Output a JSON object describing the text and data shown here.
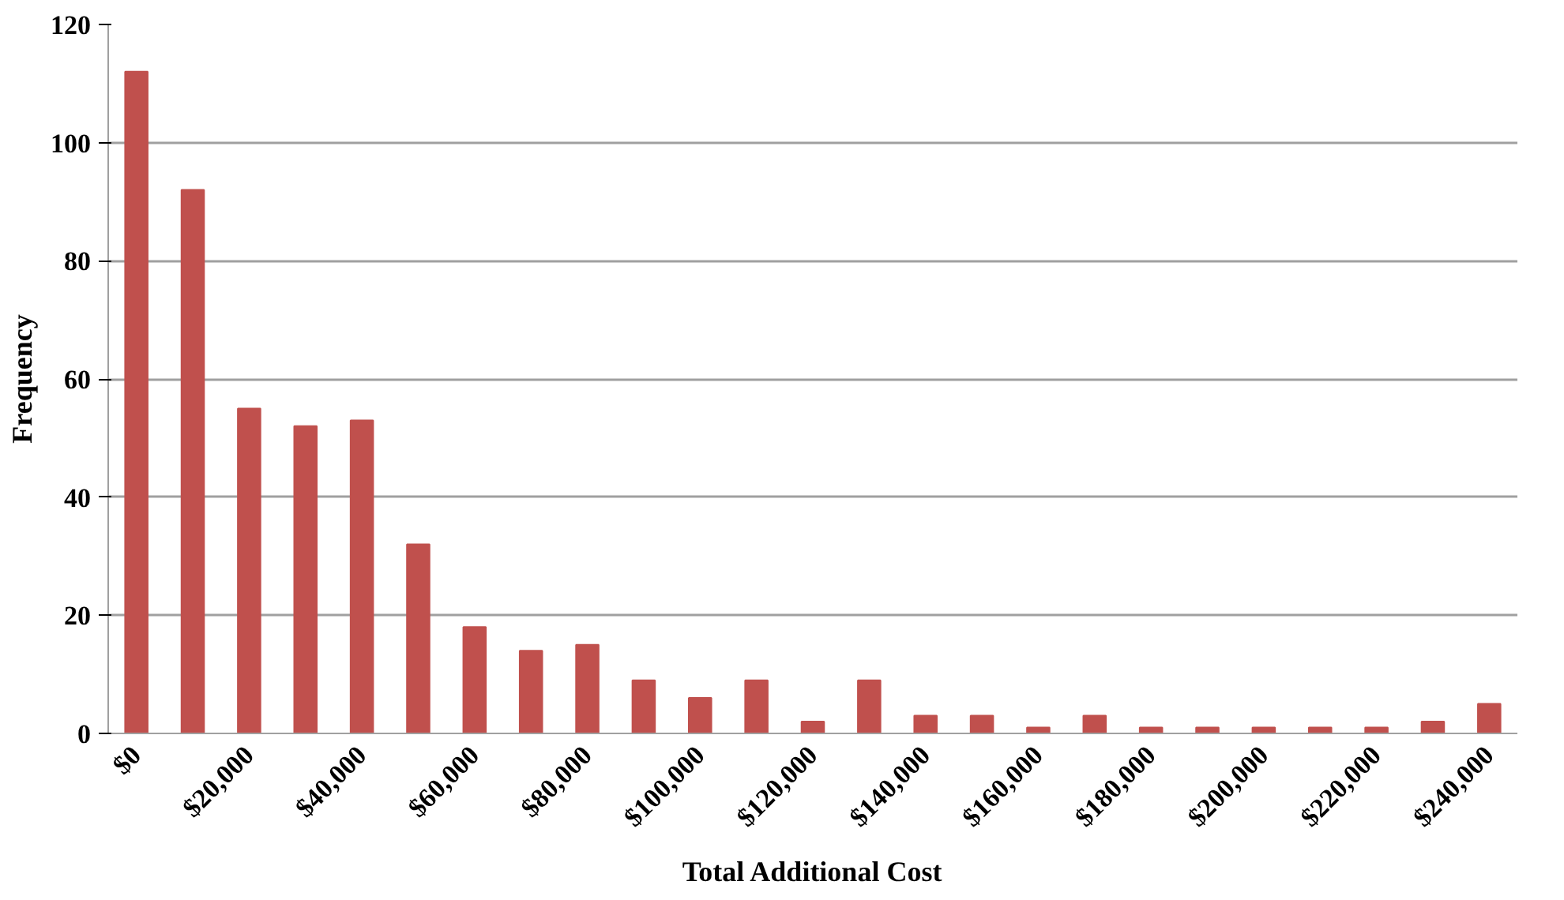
{
  "chart_data": {
    "type": "bar",
    "xlabel": "Total Additional Cost",
    "ylabel": "Frequency",
    "categories": [
      "$0",
      null,
      "$20,000",
      null,
      "$40,000",
      null,
      "$60,000",
      null,
      "$80,000",
      null,
      "$100,000",
      null,
      "$120,000",
      null,
      "$140,000",
      null,
      "$160,000",
      null,
      "$180,000",
      null,
      "$200,000",
      null,
      "$220,000",
      null,
      "$240,000"
    ],
    "values": [
      112,
      92,
      55,
      52,
      53,
      32,
      18,
      14,
      15,
      9,
      6,
      9,
      2,
      9,
      3,
      3,
      1,
      3,
      1,
      1,
      1,
      1,
      1,
      2,
      5
    ],
    "color": "#c0504d",
    "ylim": [
      0,
      120
    ],
    "yticks": [
      0,
      20,
      40,
      60,
      80,
      100,
      120
    ],
    "grid": "y"
  }
}
